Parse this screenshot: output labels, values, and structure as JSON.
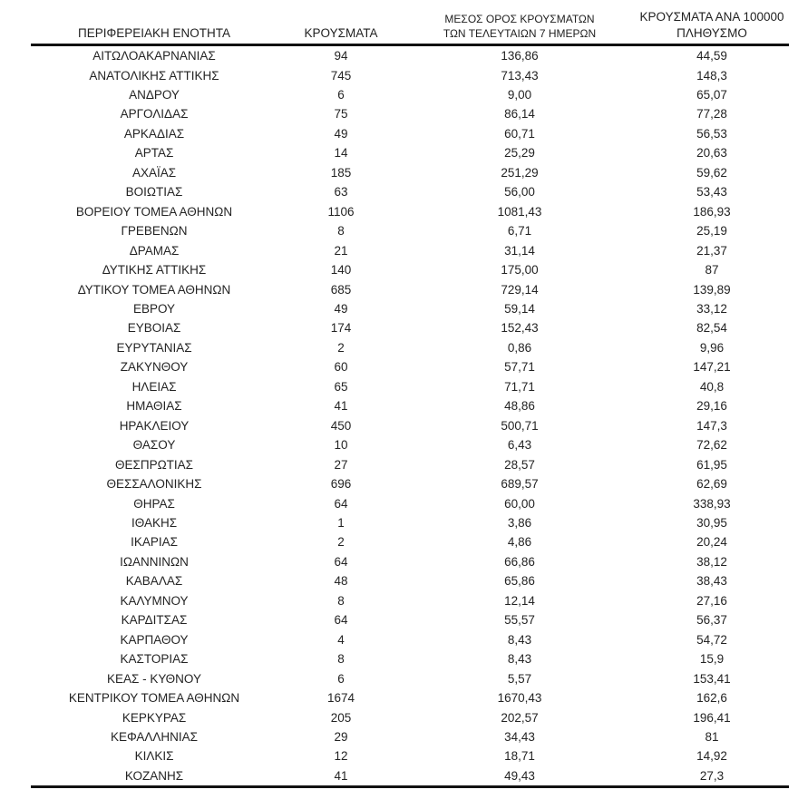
{
  "table": {
    "columns": [
      {
        "key": "region",
        "label": "ΠΕΡΙΦΕΡΕΙΑΚΗ ΕΝΟΤΗΤΑ"
      },
      {
        "key": "cases",
        "label": "ΚΡΟΥΣΜΑΤΑ"
      },
      {
        "key": "avg7",
        "label": "ΜΕΣΟΣ ΟΡΟΣ ΚΡΟΥΣΜΑΤΩΝ\nΤΩΝ ΤΕΛΕΥΤΑΙΩΝ 7 ΗΜΕΡΩΝ"
      },
      {
        "key": "per100k",
        "label": "ΚΡΟΥΣΜΑΤΑ ΑΝΑ 100000\nΠΛΗΘΥΣΜΟ"
      }
    ],
    "rows": [
      {
        "region": "ΑΙΤΩΛΟΑΚΑΡΝΑΝΙΑΣ",
        "cases": "94",
        "avg7": "136,86",
        "per100k": "44,59"
      },
      {
        "region": "ΑΝΑΤΟΛΙΚΗΣ ΑΤΤΙΚΗΣ",
        "cases": "745",
        "avg7": "713,43",
        "per100k": "148,3"
      },
      {
        "region": "ΑΝΔΡΟΥ",
        "cases": "6",
        "avg7": "9,00",
        "per100k": "65,07"
      },
      {
        "region": "ΑΡΓΟΛΙΔΑΣ",
        "cases": "75",
        "avg7": "86,14",
        "per100k": "77,28"
      },
      {
        "region": "ΑΡΚΑΔΙΑΣ",
        "cases": "49",
        "avg7": "60,71",
        "per100k": "56,53"
      },
      {
        "region": "ΑΡΤΑΣ",
        "cases": "14",
        "avg7": "25,29",
        "per100k": "20,63"
      },
      {
        "region": "ΑΧΑΪΑΣ",
        "cases": "185",
        "avg7": "251,29",
        "per100k": "59,62"
      },
      {
        "region": "ΒΟΙΩΤΙΑΣ",
        "cases": "63",
        "avg7": "56,00",
        "per100k": "53,43"
      },
      {
        "region": "ΒΟΡΕΙΟΥ ΤΟΜΕΑ ΑΘΗΝΩΝ",
        "cases": "1106",
        "avg7": "1081,43",
        "per100k": "186,93"
      },
      {
        "region": "ΓΡΕΒΕΝΩΝ",
        "cases": "8",
        "avg7": "6,71",
        "per100k": "25,19"
      },
      {
        "region": "ΔΡΑΜΑΣ",
        "cases": "21",
        "avg7": "31,14",
        "per100k": "21,37"
      },
      {
        "region": "ΔΥΤΙΚΗΣ ΑΤΤΙΚΗΣ",
        "cases": "140",
        "avg7": "175,00",
        "per100k": "87"
      },
      {
        "region": "ΔΥΤΙΚΟΥ ΤΟΜΕΑ ΑΘΗΝΩΝ",
        "cases": "685",
        "avg7": "729,14",
        "per100k": "139,89"
      },
      {
        "region": "ΕΒΡΟΥ",
        "cases": "49",
        "avg7": "59,14",
        "per100k": "33,12"
      },
      {
        "region": "ΕΥΒΟΙΑΣ",
        "cases": "174",
        "avg7": "152,43",
        "per100k": "82,54"
      },
      {
        "region": "ΕΥΡΥΤΑΝΙΑΣ",
        "cases": "2",
        "avg7": "0,86",
        "per100k": "9,96"
      },
      {
        "region": "ΖΑΚΥΝΘΟΥ",
        "cases": "60",
        "avg7": "57,71",
        "per100k": "147,21"
      },
      {
        "region": "ΗΛΕΙΑΣ",
        "cases": "65",
        "avg7": "71,71",
        "per100k": "40,8"
      },
      {
        "region": "ΗΜΑΘΙΑΣ",
        "cases": "41",
        "avg7": "48,86",
        "per100k": "29,16"
      },
      {
        "region": "ΗΡΑΚΛΕΙΟΥ",
        "cases": "450",
        "avg7": "500,71",
        "per100k": "147,3"
      },
      {
        "region": "ΘΑΣΟΥ",
        "cases": "10",
        "avg7": "6,43",
        "per100k": "72,62"
      },
      {
        "region": "ΘΕΣΠΡΩΤΙΑΣ",
        "cases": "27",
        "avg7": "28,57",
        "per100k": "61,95"
      },
      {
        "region": "ΘΕΣΣΑΛΟΝΙΚΗΣ",
        "cases": "696",
        "avg7": "689,57",
        "per100k": "62,69"
      },
      {
        "region": "ΘΗΡΑΣ",
        "cases": "64",
        "avg7": "60,00",
        "per100k": "338,93"
      },
      {
        "region": "ΙΘΑΚΗΣ",
        "cases": "1",
        "avg7": "3,86",
        "per100k": "30,95"
      },
      {
        "region": "ΙΚΑΡΙΑΣ",
        "cases": "2",
        "avg7": "4,86",
        "per100k": "20,24"
      },
      {
        "region": "ΙΩΑΝΝΙΝΩΝ",
        "cases": "64",
        "avg7": "66,86",
        "per100k": "38,12"
      },
      {
        "region": "ΚΑΒΑΛΑΣ",
        "cases": "48",
        "avg7": "65,86",
        "per100k": "38,43"
      },
      {
        "region": "ΚΑΛΥΜΝΟΥ",
        "cases": "8",
        "avg7": "12,14",
        "per100k": "27,16"
      },
      {
        "region": "ΚΑΡΔΙΤΣΑΣ",
        "cases": "64",
        "avg7": "55,57",
        "per100k": "56,37"
      },
      {
        "region": "ΚΑΡΠΑΘΟΥ",
        "cases": "4",
        "avg7": "8,43",
        "per100k": "54,72"
      },
      {
        "region": "ΚΑΣΤΟΡΙΑΣ",
        "cases": "8",
        "avg7": "8,43",
        "per100k": "15,9"
      },
      {
        "region": "ΚΕΑΣ - ΚΥΘΝΟΥ",
        "cases": "6",
        "avg7": "5,57",
        "per100k": "153,41"
      },
      {
        "region": "ΚΕΝΤΡΙΚΟΥ ΤΟΜΕΑ ΑΘΗΝΩΝ",
        "cases": "1674",
        "avg7": "1670,43",
        "per100k": "162,6"
      },
      {
        "region": "ΚΕΡΚΥΡΑΣ",
        "cases": "205",
        "avg7": "202,57",
        "per100k": "196,41"
      },
      {
        "region": "ΚΕΦΑΛΛΗΝΙΑΣ",
        "cases": "29",
        "avg7": "34,43",
        "per100k": "81"
      },
      {
        "region": "ΚΙΛΚΙΣ",
        "cases": "12",
        "avg7": "18,71",
        "per100k": "14,92"
      },
      {
        "region": "ΚΟΖΑΝΗΣ",
        "cases": "41",
        "avg7": "49,43",
        "per100k": "27,3"
      }
    ]
  },
  "colors": {
    "text": "#242424",
    "rule": "#111111",
    "background": "#ffffff"
  }
}
